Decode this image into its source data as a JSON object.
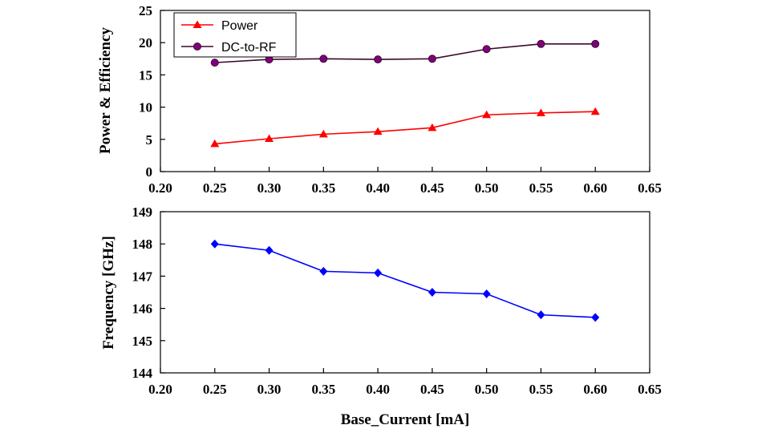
{
  "chart_data": [
    {
      "type": "line",
      "xlabel": "",
      "ylabel": "Power & Efficiency",
      "xlim": [
        0.2,
        0.65
      ],
      "ylim": [
        0,
        25
      ],
      "xticks": [
        "0.20",
        "0.25",
        "0.30",
        "0.35",
        "0.40",
        "0.45",
        "0.50",
        "0.55",
        "0.60",
        "0.65"
      ],
      "yticks": [
        "0",
        "5",
        "10",
        "15",
        "20",
        "25"
      ],
      "legend": "top-left",
      "grid": false,
      "x": [
        0.25,
        0.3,
        0.35,
        0.4,
        0.45,
        0.5,
        0.55,
        0.6
      ],
      "series": [
        {
          "name": "Power",
          "color": "#ff0000",
          "marker": "triangle",
          "values": [
            4.3,
            5.1,
            5.8,
            6.2,
            6.8,
            8.8,
            9.1,
            9.3
          ]
        },
        {
          "name": "DC-to-RF",
          "color": "#3a0a2a",
          "marker_color": "#800080",
          "marker": "circle",
          "values": [
            16.9,
            17.4,
            17.5,
            17.4,
            17.5,
            19.0,
            19.8,
            19.8
          ]
        }
      ]
    },
    {
      "type": "line",
      "xlabel": "Base_Current [mA]",
      "ylabel": "Frequency [GHz]",
      "xlim": [
        0.2,
        0.65
      ],
      "ylim": [
        144,
        149
      ],
      "xticks": [
        "0.20",
        "0.25",
        "0.30",
        "0.35",
        "0.40",
        "0.45",
        "0.50",
        "0.55",
        "0.60",
        "0.65"
      ],
      "yticks": [
        "144",
        "145",
        "146",
        "147",
        "148",
        "149"
      ],
      "grid": false,
      "x": [
        0.25,
        0.3,
        0.35,
        0.4,
        0.45,
        0.5,
        0.55,
        0.6
      ],
      "series": [
        {
          "color": "#0000ff",
          "marker": "diamond",
          "values": [
            148.0,
            147.8,
            147.15,
            147.1,
            146.5,
            146.45,
            145.8,
            145.72
          ]
        }
      ]
    }
  ]
}
